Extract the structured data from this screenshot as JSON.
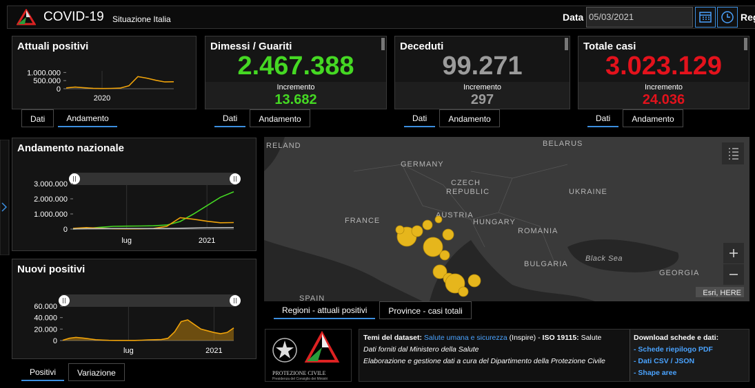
{
  "header": {
    "title": "COVID-19",
    "subtitle": "Situazione Italia",
    "date_label": "Data",
    "date_value": "05/03/2021",
    "cut_label": "Reg"
  },
  "cards": [
    {
      "title": "Attuali positivi",
      "tabs": [
        "Dati",
        "Andamento"
      ],
      "active_tab": 1,
      "chart": {
        "type": "line",
        "ylim": [
          0,
          1100000
        ],
        "yticks": [
          0,
          {
            "value": 500000,
            "label": "500.000"
          },
          {
            "value": 1000000,
            "label": "1.000.000"
          }
        ],
        "categories": [
          null,
          null,
          null,
          null,
          "2020",
          null,
          null,
          null,
          null,
          null,
          null,
          null,
          null
        ],
        "series": [
          {
            "color": "#f0a30a",
            "values": [
              50000,
              100000,
              60000,
              25000,
              14000,
              20000,
              40000,
              180000,
              750000,
              650000,
              520000,
              420000,
              430000
            ]
          }
        ]
      }
    },
    {
      "title": "Dimessi / Guariti",
      "value": "2.467.388",
      "increment_label": "Incremento",
      "increment": "13.682",
      "color": "#45d823",
      "tabs": [
        "Dati",
        "Andamento"
      ],
      "active_tab": 0
    },
    {
      "title": "Deceduti",
      "value": "99.271",
      "increment_label": "Incremento",
      "increment": "297",
      "color": "#9b9b9b",
      "tabs": [
        "Dati",
        "Andamento"
      ],
      "active_tab": 0
    },
    {
      "title": "Totale casi",
      "value": "3.023.129",
      "increment_label": "Incremento",
      "increment": "24.036",
      "color": "#e3121c",
      "tabs": [
        "Dati",
        "Andamento"
      ],
      "active_tab": 0
    }
  ],
  "panels": [
    {
      "title": "Andamento nazionale",
      "chart": {
        "type": "line",
        "ylim": [
          0,
          3000000
        ],
        "yticks": [
          0,
          {
            "value": 1000000,
            "label": "1.000.000"
          },
          {
            "value": 2000000,
            "label": "2.000.000"
          },
          {
            "value": 3000000,
            "label": "3.000.000"
          }
        ],
        "categories": [
          null,
          null,
          null,
          null,
          "lug",
          null,
          null,
          null,
          null,
          null,
          "2021",
          null,
          null
        ],
        "series": [
          {
            "color": "#45d823",
            "values": [
              5000,
              40000,
              120000,
              180000,
              195000,
              205000,
              220000,
              270000,
              500000,
              1000000,
              1550000,
              2100000,
              2470000
            ]
          },
          {
            "color": "#f0a30a",
            "values": [
              50000,
              100000,
              60000,
              25000,
              14000,
              20000,
              40000,
              180000,
              750000,
              650000,
              520000,
              420000,
              430000
            ]
          },
          {
            "color": "#bdbdbd",
            "values": [
              10000,
              27000,
              33000,
              35000,
              35000,
              35500,
              36000,
              38000,
              55000,
              74000,
              89000,
              97000,
              99000
            ]
          }
        ]
      }
    },
    {
      "title": "Nuovi positivi",
      "tabs": [
        "Positivi",
        "Variazione"
      ],
      "active_tab": 0,
      "chart": {
        "type": "area",
        "ylim": [
          0,
          60000
        ],
        "yticks": [
          0,
          {
            "value": 20000,
            "label": "20.000"
          },
          {
            "value": 40000,
            "label": "40.000"
          },
          {
            "value": 60000,
            "label": "60.000"
          }
        ],
        "categories": [
          null,
          null,
          null,
          null,
          null,
          null,
          null,
          null,
          null,
          null,
          "lug",
          null,
          null,
          null,
          null,
          null,
          null,
          null,
          null,
          null,
          null,
          null,
          null,
          "2021",
          null,
          null,
          null
        ],
        "series": [
          {
            "color": "#f0a30a",
            "values": [
              500,
              4000,
              5500,
              4500,
              3000,
              1500,
              800,
              400,
              250,
              200,
              200,
              300,
              600,
              1200,
              1500,
              1800,
              4000,
              15000,
              33000,
              36000,
              28000,
              20000,
              17000,
              14000,
              12000,
              14000,
              22000
            ]
          }
        ]
      }
    }
  ],
  "map": {
    "labels": [
      "RELAND",
      "GERMANY",
      "BELARUS",
      "CZECH",
      "REPUBLIC",
      "UKRAINE",
      "FRANCE",
      "AUSTRIA",
      "HUNGARY",
      "ROMANIA",
      "Black Sea",
      "BULGARIA",
      "GEORGIA",
      "SPAIN"
    ],
    "attribution": "Esri, HERE",
    "tabs": [
      "Regioni - attuali positivi",
      "Province - casi totali"
    ],
    "active_tab": 0
  },
  "footer": {
    "logo_title": "PROTEZIONE CIVILE",
    "logo_subtitle": "Presidenza del Consiglio dei Ministri",
    "themes_label": "Temi del dataset:",
    "themes_link": "Salute umana e sicurezza",
    "themes_suffix": "(Inspire) -",
    "standard_label": "ISO 19115:",
    "standard_value": "Salute",
    "source": "Dati forniti dal Ministero della Salute",
    "processing": "Elaborazione e gestione dati a cura del Dipartimento della Protezione Civile",
    "download_title": "Download schede e dati:",
    "downloads": [
      "- Schede riepilogo PDF",
      "- Dati CSV / JSON",
      "- Shape aree"
    ]
  }
}
